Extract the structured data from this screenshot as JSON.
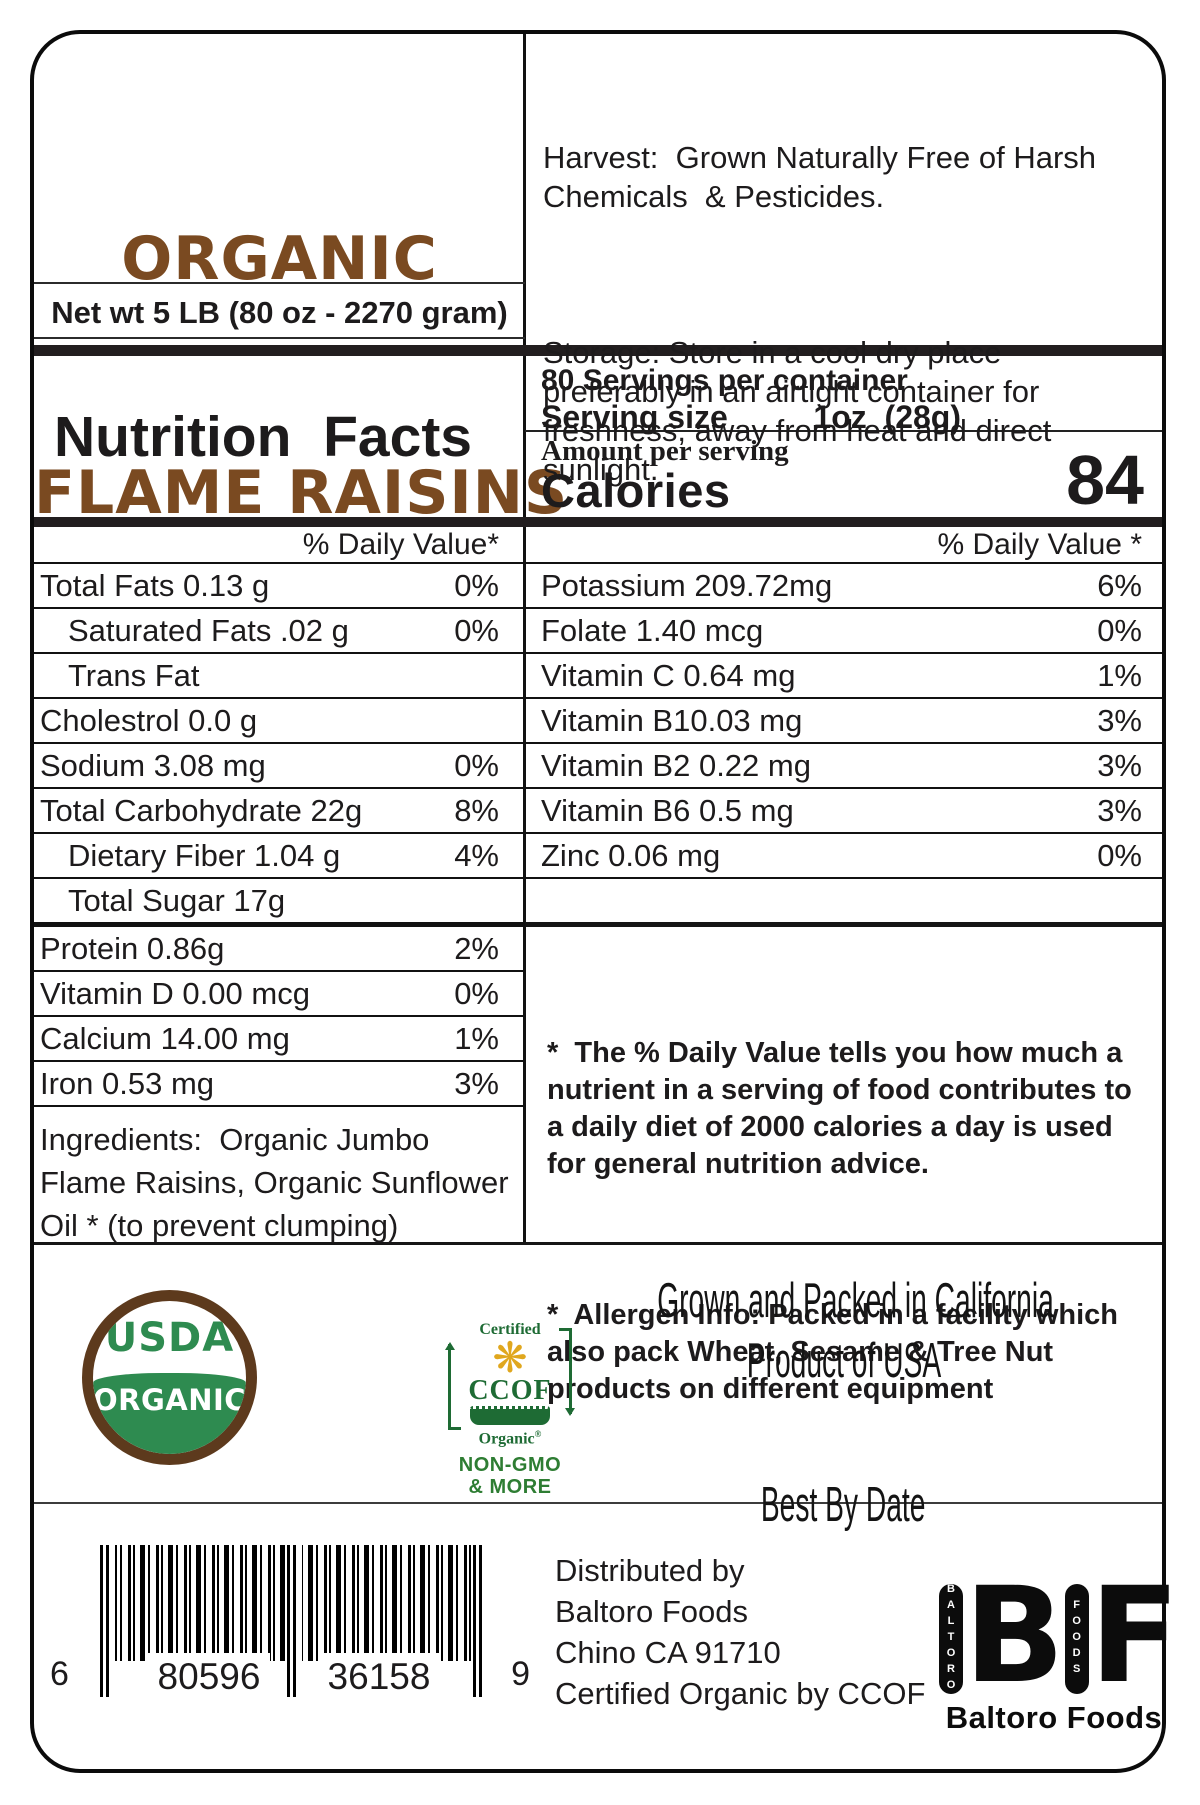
{
  "header": {
    "title_line1": "ORGANIC",
    "title_line2": "FLAME RAISINS",
    "net_weight": "Net wt 5 LB (80 oz - 2270 gram)",
    "harvest_note": "Harvest:  Grown Naturally Free of Harsh Chemicals  & Pesticides.",
    "storage_note": "Storage: Store in a cool dry place preferably in an airtight container for freshness, away from heat and direct sunlight."
  },
  "nutrition": {
    "panel_title": "Nutrition  Facts",
    "servings_per_container": "80 Servings per container",
    "serving_size_label": "Serving size",
    "serving_size_value": "1oz  (28g)",
    "amount_per_serving": "Amount per serving",
    "calories_label": "Calories",
    "calories_value": "84",
    "left_dv_header": "% Daily Value*",
    "right_dv_header": "% Daily Value *",
    "left_rows": [
      {
        "label": "Total Fats 0.13 g",
        "dv": "0%",
        "indent": false
      },
      {
        "label": "Saturated Fats .02 g",
        "dv": "0%",
        "indent": true
      },
      {
        "label": "Trans Fat",
        "dv": "",
        "indent": true
      },
      {
        "label": "Cholestrol 0.0 g",
        "dv": "",
        "indent": false
      },
      {
        "label": "Sodium 3.08 mg",
        "dv": "0%",
        "indent": false
      },
      {
        "label": "Total Carbohydrate 22g",
        "dv": "8%",
        "indent": false
      },
      {
        "label": "Dietary Fiber 1.04 g",
        "dv": "4%",
        "indent": true
      },
      {
        "label": "Total Sugar 17g",
        "dv": "",
        "indent": true,
        "thick_bottom": true
      },
      {
        "label": "Protein 0.86g",
        "dv": "2%",
        "indent": false
      },
      {
        "label": "Vitamin D 0.00 mcg",
        "dv": "0%",
        "indent": false
      },
      {
        "label": "Calcium 14.00 mg",
        "dv": "1%",
        "indent": false
      },
      {
        "label": "Iron 0.53 mg",
        "dv": "3%",
        "indent": false
      }
    ],
    "right_rows": [
      {
        "label": "Potassium 209.72mg",
        "dv": "6%"
      },
      {
        "label": "Folate 1.40 mcg",
        "dv": "0%"
      },
      {
        "label": "Vitamin C 0.64 mg",
        "dv": "1%"
      },
      {
        "label": "Vitamin B10.03 mg",
        "dv": "3%"
      },
      {
        "label": "Vitamin B2 0.22 mg",
        "dv": "3%"
      },
      {
        "label": "Vitamin B6 0.5 mg",
        "dv": "3%"
      },
      {
        "label": "Zinc 0.06 mg",
        "dv": "0%"
      },
      {
        "label": "",
        "dv": ""
      }
    ],
    "ingredients": "Ingredients:  Organic Jumbo  Flame Raisins, Organic Sunflower Oil * (to prevent clumping)",
    "dv_footnote": "*  The % Daily Value tells you how much a nutrient in a serving of food contributes to a daily diet of 2000 calories a day is used for general nutrition advice.",
    "allergen_note": "*  Allergen Info: Packed in a facility which also pack Wheat, Sesame & Tree Nut products on different equipment"
  },
  "origin": {
    "line1": "Grown and Packed in California",
    "line2": "Product of USA",
    "best_by": "Best By Date"
  },
  "logos": {
    "usda": {
      "top": "USDA",
      "bottom": "ORGANIC"
    },
    "ccof": {
      "certified": "Certified",
      "name": "CCOF",
      "organic": "Organic",
      "registered": "®",
      "flower_icon": "❋",
      "non_gmo": "NON-GMO",
      "and_more": "& MORE"
    },
    "bf": {
      "letter_b": "B",
      "letter_f": "F",
      "vertical_b": "BALTORO",
      "vertical_f": "FOODS",
      "caption": "Baltoro Foods"
    }
  },
  "distribution": {
    "lines": [
      "Distributed by",
      "Baltoro Foods",
      "Chino CA 91710",
      "Certified Organic by CCOF"
    ]
  },
  "barcode": {
    "digit_left": "6",
    "group1": "80596",
    "group2": "36158",
    "digit_right": "9"
  },
  "colors": {
    "title_brown": "#7a4a21",
    "usda_brown": "#5d3a1d",
    "usda_green": "#2e8b50",
    "ccof_green": "#1e6b34",
    "sunflower_yellow": "#e0a71e",
    "ink": "#1d1b1c"
  }
}
